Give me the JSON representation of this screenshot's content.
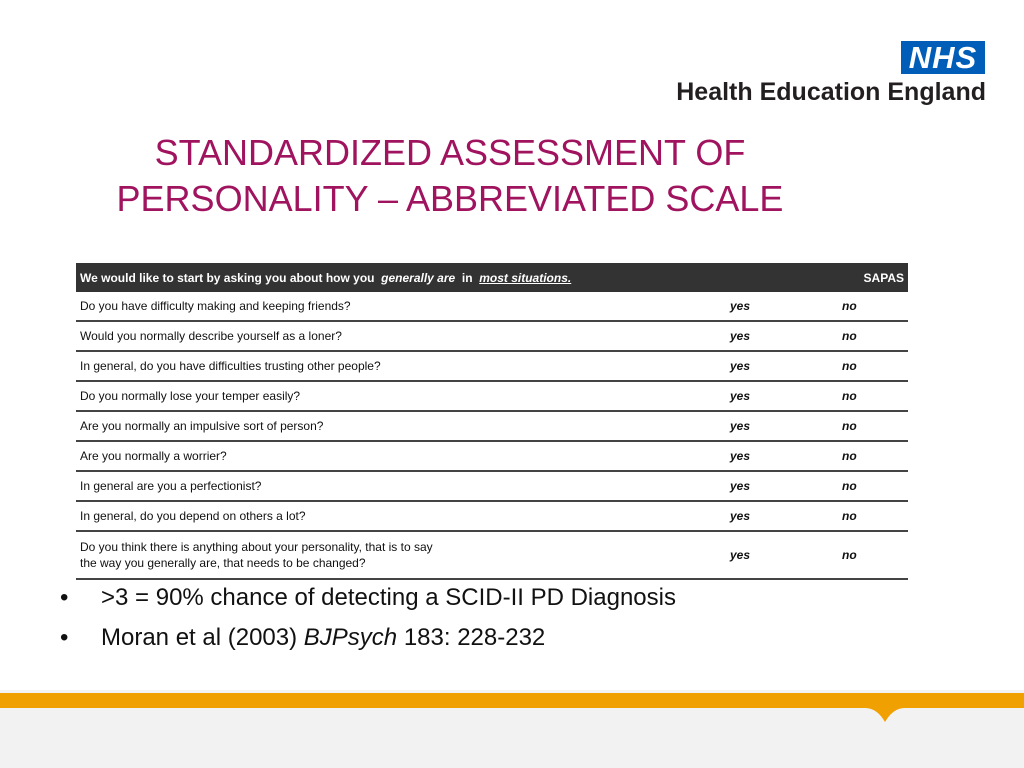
{
  "logo": {
    "badge": "NHS",
    "name": "Health Education England"
  },
  "title": [
    "STANDARDIZED ASSESSMENT OF",
    "PERSONALITY – ABBREVIATED SCALE"
  ],
  "table": {
    "header": {
      "intro": "We would like to start by asking you about how you",
      "emphasis": "generally are",
      "joiner": "in",
      "underlined": "most situations.",
      "scale": "SAPAS"
    },
    "rows": [
      {
        "question": [
          "Do you have difficulty making and keeping friends?"
        ],
        "yes": "yes",
        "no": "no"
      },
      {
        "question": [
          "Would you normally describe yourself as a loner?"
        ],
        "yes": "yes",
        "no": "no"
      },
      {
        "question": [
          "In general, do you have difficulties trusting other people?"
        ],
        "yes": "yes",
        "no": "no"
      },
      {
        "question": [
          "Do you normally lose your temper easily?"
        ],
        "yes": "yes",
        "no": "no"
      },
      {
        "question": [
          "Are you normally an impulsive sort of person?"
        ],
        "yes": "yes",
        "no": "no"
      },
      {
        "question": [
          "Are you normally a worrier?"
        ],
        "yes": "yes",
        "no": "no"
      },
      {
        "question": [
          "In general are you a perfectionist?"
        ],
        "yes": "yes",
        "no": "no"
      },
      {
        "question": [
          "In general, do you depend on others a lot?"
        ],
        "yes": "yes",
        "no": "no"
      },
      {
        "question": [
          "Do you think there is anything about your personality, that is to say",
          "the way you generally are, that needs to be changed?"
        ],
        "yes": "yes",
        "no": "no"
      }
    ]
  },
  "bullets": [
    [
      ">3 = 90% chance of detecting a SCID-II PD Diagnosis"
    ],
    [
      "Moran et al (2003) ",
      "BJPsych",
      " 183: 228-232"
    ]
  ]
}
